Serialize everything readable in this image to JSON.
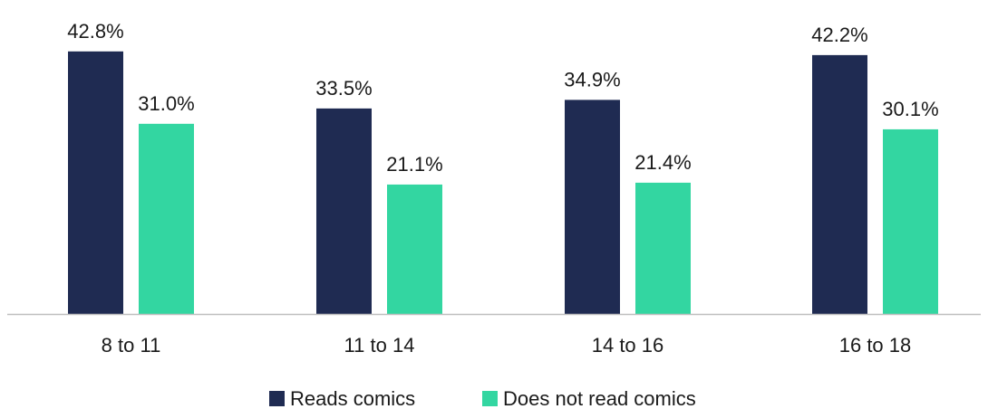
{
  "chart_data": {
    "type": "bar",
    "categories": [
      "8 to 11",
      "11 to 14",
      "14 to 16",
      "16 to 18"
    ],
    "series": [
      {
        "name": "Reads comics",
        "values": [
          42.8,
          33.5,
          34.9,
          42.2
        ],
        "labels": [
          "42.8%",
          "33.5%",
          "34.9%",
          "42.2%"
        ],
        "color": "#1f2b52"
      },
      {
        "name": "Does not read comics",
        "values": [
          31.0,
          21.1,
          21.4,
          30.1
        ],
        "labels": [
          "31.0%",
          "21.1%",
          "21.4%",
          "30.1%"
        ],
        "color": "#33d6a1"
      }
    ],
    "ylim": [
      0,
      50
    ],
    "grid": false,
    "legend_position": "bottom",
    "axis_color": "#bfbfbf"
  }
}
